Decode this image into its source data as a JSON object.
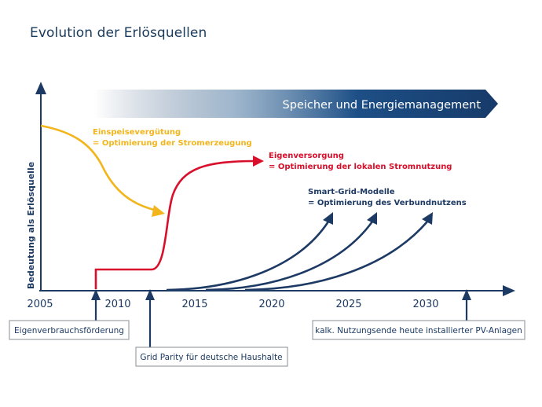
{
  "title": "Evolution der Erlösquellen",
  "colors": {
    "navy": "#1d3a64",
    "yellow": "#f2b51b",
    "red": "#d8102c",
    "grey_box": "#8a8f96"
  },
  "y_axis_label": "Bedeutung als Erlösquelle",
  "x_ticks": [
    "2005",
    "2010",
    "2015",
    "2020",
    "2025",
    "2030"
  ],
  "banner": "Speicher und Energiemanagement",
  "curves": {
    "feed_in": {
      "title": "Einspeisevergütung",
      "subtitle": "= Optimierung der Stromerzeugung"
    },
    "self_consumption": {
      "title": "Eigenversorgung",
      "subtitle": "= Optimierung der lokalen Stromnutzung"
    },
    "smart_grid": {
      "title": "Smart-Grid-Modelle",
      "subtitle": "= Optimierung des Verbundnutzens"
    }
  },
  "milestones": {
    "m1": "Eigenverbrauchsförderung",
    "m2": "Grid Parity für deutsche Haushalte",
    "m3": "kalk. Nutzungsende heute installierter PV-Anlagen"
  }
}
